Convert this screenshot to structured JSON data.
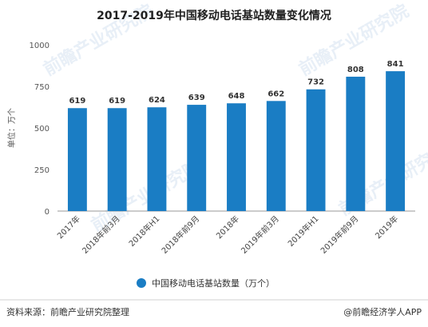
{
  "chart_data": {
    "type": "bar",
    "title": "2017-2019年中国移动电话基站数量变化情况",
    "ylabel": "单位：万个",
    "categories": [
      "2017年",
      "2018年前3月",
      "2018年H1",
      "2018年前9月",
      "2018年",
      "2019年前3月",
      "2019年H1",
      "2019年前9月",
      "2019年"
    ],
    "values": [
      619,
      619,
      624,
      639,
      648,
      662,
      732,
      808,
      841
    ],
    "ylim": [
      0,
      1000
    ],
    "yticks": [
      0,
      250,
      500,
      750,
      1000
    ],
    "grid": false,
    "legend": "bottom-center",
    "series": [
      {
        "name": "中国移动电话基站数量（万个）",
        "values": [
          619,
          619,
          624,
          639,
          648,
          662,
          732,
          808,
          841
        ],
        "color": "#1a7dc4"
      }
    ]
  },
  "footer": {
    "source": "资料来源：前瞻产业研究院整理",
    "brand": "@前瞻经济学人APP"
  },
  "watermark": {
    "text": "前瞻产业研究院",
    "color": "#e6eef6"
  },
  "colors": {
    "bar": "#1a7dc4",
    "axis": "#999999"
  }
}
